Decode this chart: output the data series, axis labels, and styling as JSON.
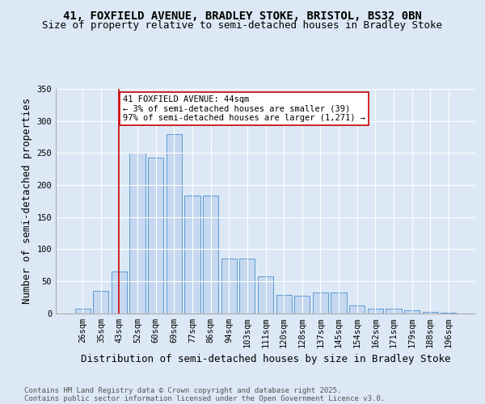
{
  "title_line1": "41, FOXFIELD AVENUE, BRADLEY STOKE, BRISTOL, BS32 0BN",
  "title_line2": "Size of property relative to semi-detached houses in Bradley Stoke",
  "xlabel": "Distribution of semi-detached houses by size in Bradley Stoke",
  "ylabel": "Number of semi-detached properties",
  "categories": [
    "26sqm",
    "35sqm",
    "43sqm",
    "52sqm",
    "60sqm",
    "69sqm",
    "77sqm",
    "86sqm",
    "94sqm",
    "103sqm",
    "111sqm",
    "120sqm",
    "128sqm",
    "137sqm",
    "145sqm",
    "154sqm",
    "162sqm",
    "171sqm",
    "179sqm",
    "188sqm",
    "196sqm"
  ],
  "values": [
    7,
    35,
    65,
    250,
    243,
    280,
    183,
    183,
    85,
    85,
    58,
    28,
    27,
    32,
    32,
    12,
    7,
    7,
    5,
    2,
    1
  ],
  "bar_color": "#c5d8f0",
  "bar_edge_color": "#5b9bd5",
  "vline_x": 2,
  "vline_color": "#cc0000",
  "annotation_text": "41 FOXFIELD AVENUE: 44sqm\n← 3% of semi-detached houses are smaller (39)\n97% of semi-detached houses are larger (1,271) →",
  "annotation_box_color": "#ffffff",
  "annotation_box_edge": "#cc0000",
  "ylim": [
    0,
    350
  ],
  "yticks": [
    0,
    50,
    100,
    150,
    200,
    250,
    300,
    350
  ],
  "background_color": "#dce8f5",
  "plot_bg_color": "#dce8f5",
  "footer_line1": "Contains HM Land Registry data © Crown copyright and database right 2025.",
  "footer_line2": "Contains public sector information licensed under the Open Government Licence v3.0.",
  "title_fontsize": 10,
  "subtitle_fontsize": 9,
  "axis_label_fontsize": 9,
  "tick_fontsize": 7.5,
  "annotation_fontsize": 7.5,
  "footer_fontsize": 6.5
}
